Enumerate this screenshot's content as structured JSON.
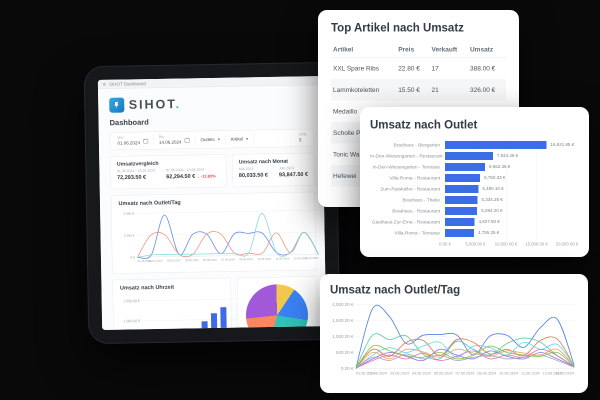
{
  "tablet": {
    "browser": {
      "tab_label": "SIHOT Dashboard"
    },
    "brand": {
      "name": "SIHOT",
      "dot": ".",
      "accent": "#35b4e5"
    },
    "page_title": "Dashboard",
    "filters": {
      "from_label": "Von",
      "from_value": "01.06.2024",
      "to_label": "Bis",
      "to_value": "14.06.2024",
      "outlet_value": "Outlets",
      "article_value": "Artikel",
      "limit_label": "Limit",
      "limit_value": "5"
    },
    "kpi_compare": {
      "title": "Umsatzvergleich",
      "prev_range": "01.05.2024 - 14.05.2024",
      "prev_value": "72,293.50 €",
      "curr_range": "01.06.2024 - 14.06.2024",
      "curr_value": "62,294.50 €",
      "delta": "↓ -13.83%",
      "delta_color": "#e5484d"
    },
    "kpi_month": {
      "title": "Umsatz nach Monat",
      "left_label": "Mai 2024",
      "left_value": "80,033.50 €",
      "right_label": "Juni 2024",
      "right_value": "93,847.50 €"
    },
    "mini_line_title": "Umsatz nach Outlet/Tag",
    "hour_title": "Umsatz nach Uhrzeit"
  },
  "cards": {
    "top_articles": {
      "title": "Top Artikel nach Umsatz",
      "columns": [
        "Artikel",
        "Preis",
        "Verkauft",
        "Umsatz"
      ],
      "link_color": "#50b2d8",
      "rows": [
        {
          "artikel": "XXL Spare Ribs",
          "preis": "22.80 €",
          "verkauft": "17",
          "umsatz": "388.00 €"
        },
        {
          "artikel": "Lammkoteletten",
          "preis": "15.50 €",
          "verkauft": "21",
          "umsatz": "326.00 €"
        },
        {
          "artikel": "Medaillo",
          "preis": "",
          "verkauft": "",
          "umsatz": ""
        },
        {
          "artikel": "Scholle P",
          "preis": "",
          "verkauft": "",
          "umsatz": ""
        },
        {
          "artikel": "Tonic Wa",
          "preis": "",
          "verkauft": "",
          "umsatz": ""
        },
        {
          "artikel": "Hefewei",
          "preis": "",
          "verkauft": "",
          "umsatz": ""
        }
      ]
    },
    "outlet_bars_title": "Umsatz nach Outlet",
    "outlet_lines_title": "Umsatz nach Outlet/Tag"
  },
  "chart_data": [
    {
      "id": "top_outlet_bars",
      "type": "bar",
      "orientation": "horizontal",
      "title": "Umsatz nach Outlet",
      "categories": [
        "Brauhaus - Biergarten",
        "In-Den-Wiesengarten - Restaurant",
        "In-Den-Wiesengarten - Terrasse",
        "Villa-Roma - Restaurant",
        "Zum-Ratskeller - Restaurant",
        "Brauhaus - Theke",
        "Brauhaus - Restaurant",
        "Gasthaus-Zur-Erna - Restaurant",
        "Villa-Roma - Terrasse"
      ],
      "values": [
        16621.85,
        7844.46,
        6562.35,
        5750.33,
        5480.1,
        5334.25,
        5284.2,
        4827.5,
        4755.25
      ],
      "value_labels": [
        "16,621.85 €",
        "7,844.46 €",
        "6,562.35 €",
        "5,750.33 €",
        "5,480.10 €",
        "5,334.25 €",
        "5,284.20 €",
        "4,827.50 €",
        "4,755.25 €"
      ],
      "xlim": [
        0,
        20000
      ],
      "x_ticks": [
        "0.00 €",
        "5,000.00 €",
        "10,000.00 €",
        "15,000.00 €",
        "20,000.00 €"
      ],
      "bar_color": "#3b6ee6",
      "grid": true
    },
    {
      "id": "outlet_day_lines",
      "type": "line",
      "title": "Umsatz nach Outlet/Tag",
      "ylim": [
        0,
        2000
      ],
      "y_ticks": [
        "2,000.00 €",
        "1,500.00 €",
        "1,000.00 €",
        "500.00 €",
        "0.00 €"
      ],
      "x_ticks": [
        "01.06.2024",
        "02.06.2024",
        "03.06.2024",
        "04.06.2024",
        "05.06.2024",
        "07.06.2024",
        "08.06.2024",
        "10.06.2024",
        "11.06.2024",
        "13.06.2024",
        "14.06.2024"
      ],
      "grid": true,
      "legend": "none",
      "series": [
        {
          "name": "Brauhaus - Biergarten",
          "color": "#4a7ae0",
          "values": [
            20,
            1880,
            1620,
            780,
            1040,
            1060,
            1050,
            420,
            1020,
            1040,
            660,
            1280,
            1540,
            120
          ]
        },
        {
          "name": "In-Den-Wiesengarten - Restaurant",
          "color": "#e8684a",
          "values": [
            15,
            600,
            380,
            820,
            880,
            400,
            900,
            820,
            450,
            600,
            400,
            880,
            920,
            80
          ]
        },
        {
          "name": "In-Den-Wiesengarten - Terrasse",
          "color": "#50c7a2",
          "values": [
            10,
            1050,
            900,
            1020,
            450,
            300,
            850,
            600,
            420,
            780,
            950,
            820,
            400,
            60
          ]
        },
        {
          "name": "Villa-Roma - Restaurant",
          "color": "#8d6ae8",
          "values": [
            10,
            300,
            500,
            380,
            250,
            600,
            420,
            300,
            550,
            380,
            300,
            500,
            300,
            50
          ]
        },
        {
          "name": "Zum-Ratskeller - Restaurant",
          "color": "#f6a04d",
          "values": [
            10,
            500,
            300,
            600,
            520,
            350,
            600,
            480,
            380,
            550,
            480,
            420,
            600,
            70
          ]
        },
        {
          "name": "Brauhaus - Theke",
          "color": "#5ad8e6",
          "values": [
            10,
            420,
            650,
            500,
            700,
            820,
            350,
            700,
            650,
            420,
            820,
            600,
            750,
            90
          ]
        },
        {
          "name": "Brauhaus - Restaurant",
          "color": "#e86aa8",
          "values": [
            12,
            250,
            420,
            300,
            480,
            250,
            380,
            550,
            300,
            420,
            350,
            600,
            400,
            60
          ]
        },
        {
          "name": "Gasthaus-Zur-Erna - Restaurant",
          "color": "#7bc243",
          "values": [
            10,
            700,
            550,
            400,
            350,
            500,
            300,
            420,
            700,
            500,
            420,
            380,
            500,
            70
          ]
        },
        {
          "name": "Villa-Roma - Terrasse",
          "color": "#a0a7b4",
          "values": [
            8,
            350,
            250,
            450,
            300,
            420,
            250,
            350,
            400,
            300,
            350,
            420,
            250,
            40
          ]
        }
      ]
    },
    {
      "id": "tablet_outlet_day",
      "type": "line",
      "title": "Umsatz nach Outlet/Tag",
      "ylim": [
        0,
        2000
      ],
      "y_ticks": [
        "2,000 €",
        "1,000 €",
        "0 €"
      ],
      "x_ticks": [
        "01.06.2024",
        "02.06.2024",
        "03.06.2024",
        "04.06.2024",
        "05.06.2024",
        "07.06.2024",
        "08.06.2024",
        "10.06.2024",
        "11.06.2024",
        "13.06.2024",
        "14.06.2024"
      ],
      "grid": true,
      "series": [
        {
          "name": "outlet-blue",
          "color": "#5b86e8",
          "values": [
            0,
            100,
            1900,
            100,
            1000,
            1000,
            100,
            1000,
            1000,
            1000,
            100,
            100,
            1000,
            0
          ]
        },
        {
          "name": "outlet-salmon",
          "color": "#e8917e",
          "values": [
            0,
            1000,
            1000,
            100,
            100,
            1000,
            1000,
            100,
            100,
            100,
            1000,
            100,
            1000,
            0
          ]
        },
        {
          "name": "outlet-teal",
          "color": "#7fd8d8",
          "values": [
            0,
            100,
            100,
            100,
            100,
            100,
            100,
            100,
            100,
            1900,
            100,
            100,
            1000,
            0
          ]
        }
      ]
    },
    {
      "id": "tablet_hour",
      "type": "bar",
      "orientation": "vertical",
      "title": "Umsatz nach Uhrzeit",
      "values": [
        150,
        300,
        500,
        750,
        950,
        1150,
        1300
      ],
      "ylim": [
        0,
        1500
      ],
      "y_ticks": [
        "1,500.00 €",
        "1,000.00 €",
        "500.00 €"
      ],
      "bar_color": "#3f6be4"
    },
    {
      "id": "tablet_pie",
      "type": "pie",
      "slices": [
        {
          "label": "",
          "deg": 35,
          "color": "#f2c94c"
        },
        {
          "label": "",
          "deg": 65,
          "color": "#3b82f6"
        },
        {
          "label": "",
          "deg": 95,
          "color": "#2ec4b6"
        },
        {
          "label": "",
          "deg": 70,
          "color": "#f9875f"
        },
        {
          "label": "",
          "deg": 95,
          "color": "#a259d9"
        }
      ]
    }
  ]
}
